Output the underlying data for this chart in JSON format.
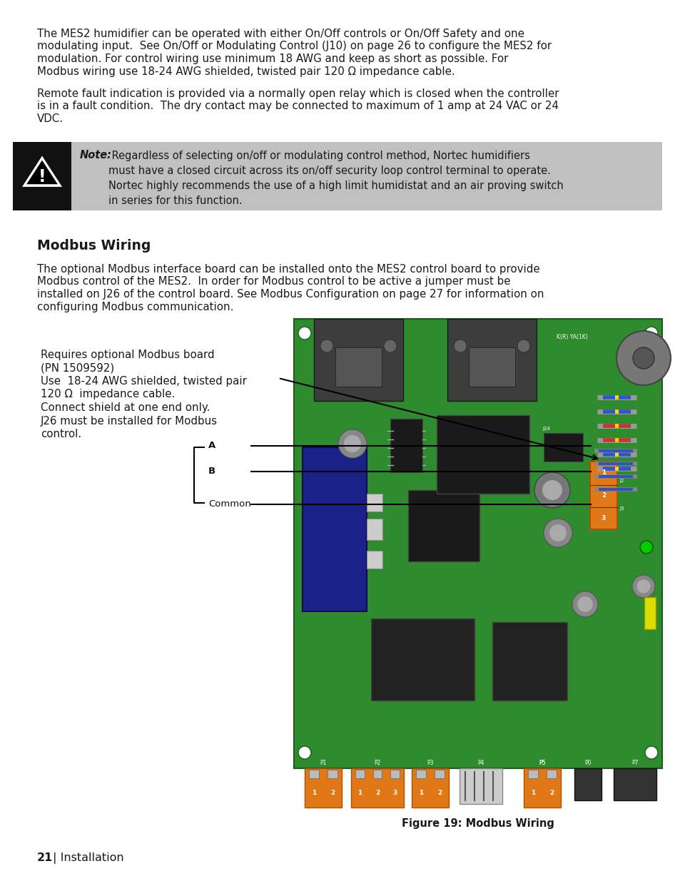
{
  "page_bg": "#ffffff",
  "text_color": "#1a1a1a",
  "para1_line1": "The MES2 humidifier can be operated with either On/Off controls or On/Off Safety and one",
  "para1_line2": "modulating input.  See On/Off or Modulating Control (J10) on page 26 to configure the MES2 for",
  "para1_line3": "modulation. For control wiring use minimum 18 AWG and keep as short as possible. For",
  "para1_line4": "Modbus wiring use 18-24 AWG shielded, twisted pair 120 Ω impedance cable.",
  "para2_line1": "Remote fault indication is provided via a normally open relay which is closed when the controller",
  "para2_line2": "is in a fault condition.  The dry contact may be connected to maximum of 1 amp at 24 VAC or 24",
  "para2_line3": "VDC.",
  "warning_bg": "#c0c0c0",
  "warning_icon_bg": "#111111",
  "warning_text_bold": "Note:",
  "warning_text": " Regardless of selecting on/off or modulating control method, Nortec humidifiers\nmust have a closed circuit across its on/off security loop control terminal to operate.\nNortec highly recommends the use of a high limit humidistat and an air proving switch\nin series for this function.",
  "section_title": "Modbus Wiring",
  "para3_line1": "The optional Modbus interface board can be installed onto the MES2 control board to provide",
  "para3_line2": "Modbus control of the MES2.  In order for Modbus control to be active a jumper must be",
  "para3_line3": "installed on J26 of the control board. See Modbus Configuration on page 27 for information on",
  "para3_line4": "configuring Modbus communication.",
  "annotation_line1": "Requires optional Modbus board",
  "annotation_line2": "(PN 1509592)",
  "annotation_line3": "Use  18-24 AWG shielded, twisted pair",
  "annotation_line4": "120 Ω  impedance cable.",
  "annotation_line5": "Connect shield at one end only.",
  "annotation_line6": "J26 must be installed for Modbus",
  "annotation_line7": "control.",
  "label_A": "A",
  "label_B": "B",
  "label_Common": "Common",
  "figure_caption": "Figure 19: Modbus Wiring",
  "page_footer_bold": "21",
  "page_footer_rest": " | Installation",
  "pcb_green": "#2e8b2e",
  "pcb_green_dark": "#1a5c1a",
  "pcb_dark": "#333333",
  "pcb_darker": "#222222",
  "pcb_blue": "#1a2288",
  "pcb_orange": "#e07818",
  "pcb_orange_dark": "#b05000",
  "pcb_gray": "#888888",
  "pcb_yellow": "#dddd00"
}
